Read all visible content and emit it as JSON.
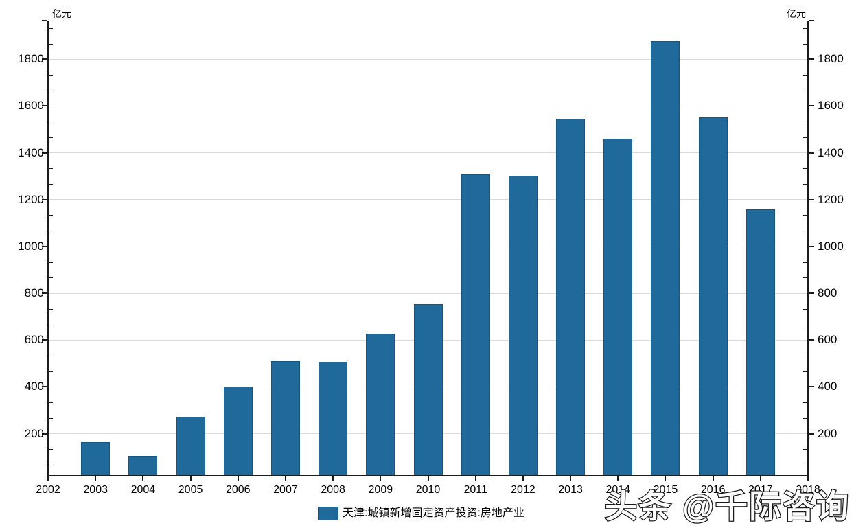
{
  "chart_data": {
    "type": "bar",
    "title": "",
    "unit_left": "亿元",
    "unit_right": "亿元",
    "legend": "天津:城镇新增固定资产投资:房地产业",
    "categories": [
      "2003",
      "2004",
      "2005",
      "2006",
      "2007",
      "2008",
      "2009",
      "2010",
      "2011",
      "2012",
      "2013",
      "2014",
      "2015",
      "2016",
      "2017"
    ],
    "values": [
      163,
      105,
      271,
      402,
      510,
      508,
      628,
      754,
      1308,
      1303,
      1545,
      1459,
      1876,
      1552,
      1158
    ],
    "x_range": [
      2002,
      2018
    ],
    "x_tick_labels": [
      "2002",
      "2003",
      "2004",
      "2005",
      "2006",
      "2007",
      "2008",
      "2009",
      "2010",
      "2011",
      "2012",
      "2013",
      "2014",
      "2015",
      "2016",
      "2017",
      "2018"
    ],
    "y_ticks": [
      200,
      400,
      600,
      800,
      1000,
      1200,
      1400,
      1600,
      1800
    ],
    "ylim": [
      20,
      1965
    ],
    "minor_divisions_per_major": 3,
    "grid": "horizontal-major-only",
    "legend_position": "bottom-center",
    "dual_y_axis": true
  },
  "colors": {
    "bar": "#1f699b",
    "grid": "#d9d9d9",
    "axis": "#1c1c1c",
    "watermark_fill": "#ffffff",
    "watermark_stroke": "#1a1a1a"
  },
  "watermark": {
    "text": "头条 @千际咨询"
  }
}
